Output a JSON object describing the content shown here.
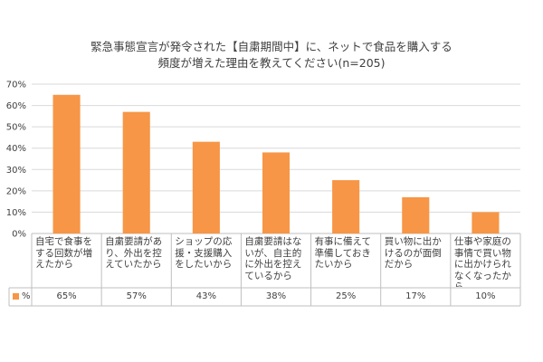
{
  "chart_data": {
    "type": "bar",
    "title_line1": "緊急事態宣言が発令された【自粛期間中】に、ネットで食品を購入する",
    "title_line2": "頻度が増えた理由を教えてください(n=205)",
    "categories": [
      "自宅で食事をする回数が増えたから",
      "自粛要請があり、外出を控えていたから",
      "ショップの応援・支援購入をしたいから",
      "自粛要請はないが、自主的に外出を控えているから",
      "有事に備えて準備しておきたいから",
      "買い物に出かけるのが面倒だから",
      "仕事や家庭の事情で買い物に出かけられなくなったから"
    ],
    "series": [
      {
        "name": "%",
        "values": [
          0.65,
          0.57,
          0.43,
          0.38,
          0.25,
          0.17,
          0.1
        ],
        "labels": [
          "65%",
          "57%",
          "43%",
          "38%",
          "25%",
          "17%",
          "10%"
        ]
      }
    ],
    "ylim": [
      0,
      0.7
    ],
    "y_ticks": [
      "0%",
      "10%",
      "20%",
      "30%",
      "40%",
      "50%",
      "60%",
      "70%"
    ],
    "grid": true,
    "legend_placement": "data-table",
    "bar_color": "#F79646",
    "grid_color": "#D9D9D9"
  }
}
